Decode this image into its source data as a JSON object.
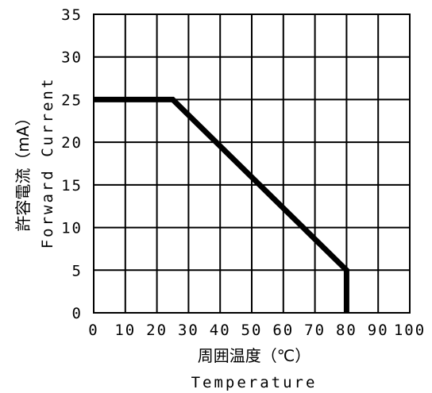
{
  "chart_data": {
    "type": "line",
    "title": "",
    "xlabel": "周囲温度（℃）",
    "xlabel_en": "Temperature",
    "ylabel": "許容電流（mA）",
    "ylabel_en": "Forward Current",
    "xlim": [
      0,
      100
    ],
    "ylim": [
      0,
      35
    ],
    "x_ticks": [
      "0",
      "10",
      "20",
      "30",
      "40",
      "50",
      "60",
      "70",
      "80",
      "90",
      "100"
    ],
    "y_ticks": [
      "0",
      "5",
      "10",
      "15",
      "20",
      "25",
      "30",
      "35"
    ],
    "grid": true,
    "series": [
      {
        "x": [
          0,
          25,
          80,
          80
        ],
        "y": [
          25,
          25,
          5,
          0
        ]
      }
    ]
  }
}
